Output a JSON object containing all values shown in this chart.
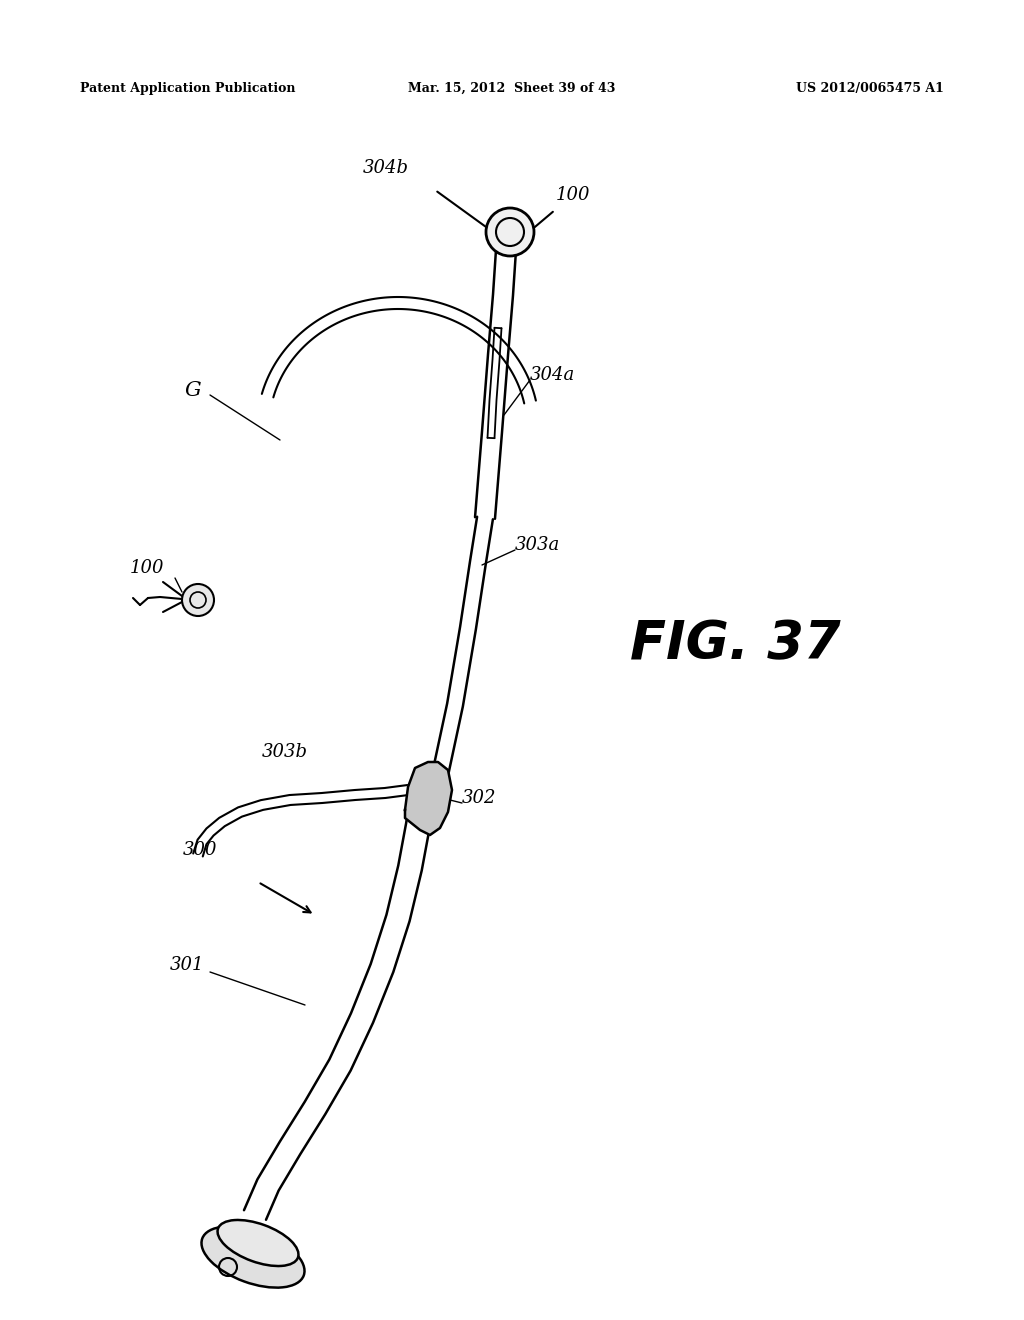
{
  "background_color": "#ffffff",
  "header_left": "Patent Application Publication",
  "header_center": "Mar. 15, 2012  Sheet 39 of 43",
  "header_right": "US 2012/0065475 A1",
  "fig_label": "FIG. 37",
  "labels": {
    "100_top": "100",
    "100_left": "100",
    "G": "G",
    "304b": "304b",
    "304a": "304a",
    "303a": "303a",
    "303b": "303b",
    "302": "302",
    "300": "300",
    "301": "301"
  }
}
